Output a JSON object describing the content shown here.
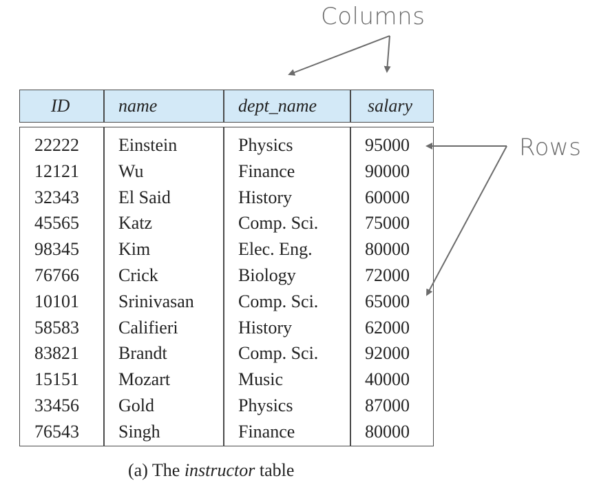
{
  "annotations": {
    "columns_label": "Columns",
    "rows_label": "Rows"
  },
  "table": {
    "headers": [
      "ID",
      "name",
      "dept_name",
      "salary"
    ],
    "rows": [
      [
        "22222",
        "Einstein",
        "Physics",
        "95000"
      ],
      [
        "12121",
        "Wu",
        "Finance",
        "90000"
      ],
      [
        "32343",
        "El Said",
        "History",
        "60000"
      ],
      [
        "45565",
        "Katz",
        "Comp. Sci.",
        "75000"
      ],
      [
        "98345",
        "Kim",
        "Elec. Eng.",
        "80000"
      ],
      [
        "76766",
        "Crick",
        "Biology",
        "72000"
      ],
      [
        "10101",
        "Srinivasan",
        "Comp. Sci.",
        "65000"
      ],
      [
        "58583",
        "Califieri",
        "History",
        "62000"
      ],
      [
        "83821",
        "Brandt",
        "Comp. Sci.",
        "92000"
      ],
      [
        "15151",
        "Mozart",
        "Music",
        "40000"
      ],
      [
        "33456",
        "Gold",
        "Physics",
        "87000"
      ],
      [
        "76543",
        "Singh",
        "Finance",
        "80000"
      ]
    ]
  },
  "caption": {
    "prefix": "(a) The ",
    "emphasis": "instructor",
    "suffix": " table"
  },
  "colors": {
    "header_fill": "#d3e9f7",
    "border": "#4a4a4a",
    "arrow": "#6b6b6b"
  }
}
